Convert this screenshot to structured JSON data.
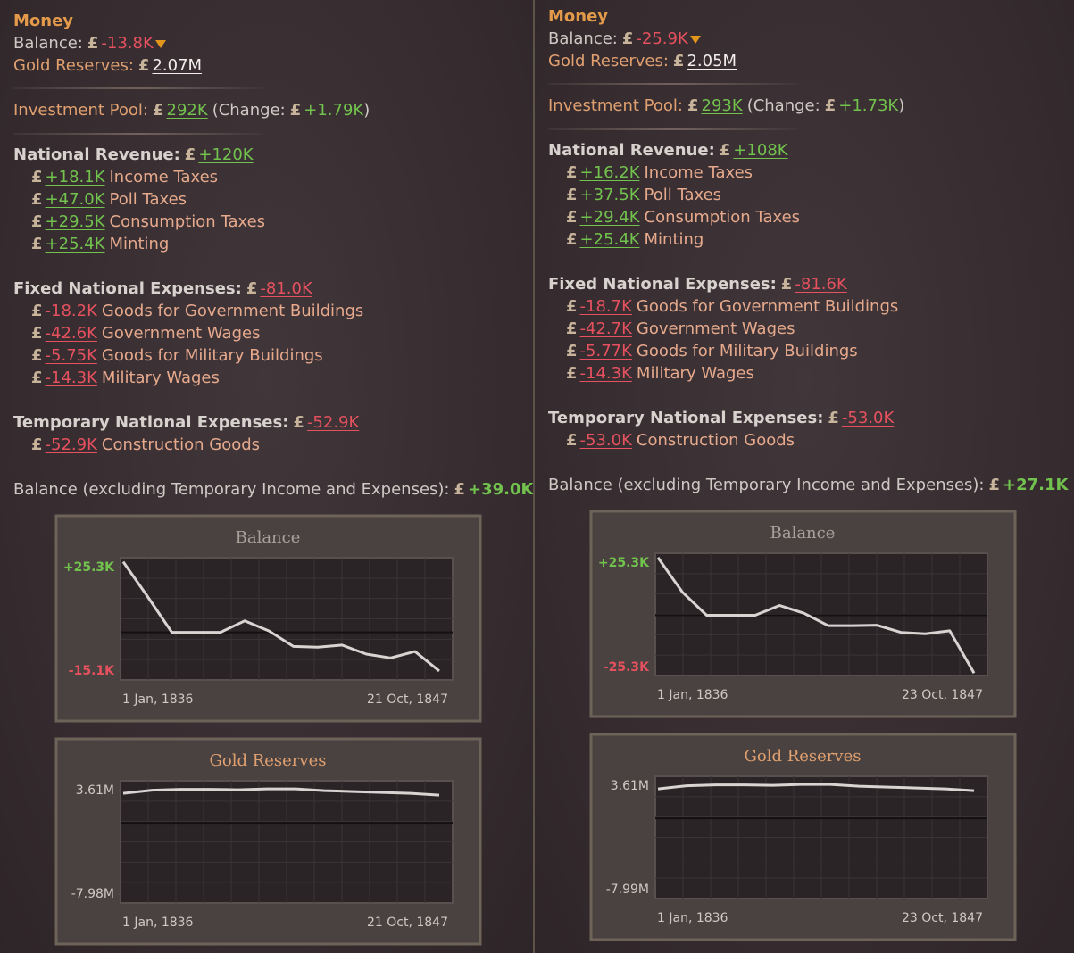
{
  "currency": "£",
  "panels": [
    {
      "title": "Money",
      "balance": {
        "label": "Balance:",
        "value": "-13.8K",
        "color": "#e5515e"
      },
      "gold_reserves": {
        "label": "Gold Reserves:",
        "value": "2.07M"
      },
      "investment_pool": {
        "label": "Investment Pool:",
        "value": "292K",
        "change_label": "(Change:",
        "change": "+1.79K",
        "close": ")"
      },
      "sections": [
        {
          "heading": "National Revenue:",
          "total": "+120K",
          "color": "#72c24e",
          "items": [
            {
              "value": "+18.1K",
              "label": "Income Taxes"
            },
            {
              "value": "+47.0K",
              "label": "Poll Taxes"
            },
            {
              "value": "+29.5K",
              "label": "Consumption Taxes"
            },
            {
              "value": "+25.4K",
              "label": "Minting"
            }
          ]
        },
        {
          "heading": "Fixed National Expenses:",
          "total": "-81.0K",
          "color": "#e5515e",
          "items": [
            {
              "value": "-18.2K",
              "label": "Goods for Government Buildings"
            },
            {
              "value": "-42.6K",
              "label": "Government Wages"
            },
            {
              "value": "-5.75K",
              "label": "Goods for Military Buildings"
            },
            {
              "value": "-14.3K",
              "label": "Military Wages"
            }
          ]
        },
        {
          "heading": "Temporary National Expenses:",
          "total": "-52.9K",
          "color": "#e5515e",
          "items": [
            {
              "value": "-52.9K",
              "label": "Construction Goods"
            }
          ]
        }
      ],
      "balance_excluding": {
        "label": "Balance (excluding Temporary Income and Expenses):",
        "value": "+39.0K",
        "color": "#72c24e"
      },
      "charts": [
        {
          "type": "line",
          "title": "Balance",
          "title_color": "#a9a19c",
          "color": "#d8d4d2",
          "ylim": [
            -18600,
            29100
          ],
          "yticks": [
            {
              "value": 25300,
              "label": "+25.3K"
            },
            {
              "value": -15100,
              "label": "-15.1K"
            }
          ],
          "tick_colors": [
            "#72c24e",
            "#e5515e"
          ],
          "x_labels": [
            "1 Jan, 1836",
            "21 Oct, 1847"
          ],
          "values": [
            27500,
            14000,
            0,
            0,
            0,
            4500,
            500,
            -5500,
            -5800,
            -5000,
            -8500,
            -10000,
            -7500,
            -15100
          ]
        },
        {
          "type": "line",
          "title": "Gold Reserves",
          "title_color": "#e0a070",
          "color": "#d8d4d2",
          "ylim": [
            -8980000,
            4710000
          ],
          "yticks": [
            {
              "value": 3610000,
              "label": "3.61M"
            },
            {
              "value": -7980000,
              "label": "-7.98M"
            }
          ],
          "tick_colors": [
            "#cfc8c4",
            "#cfc8c4"
          ],
          "x_labels": [
            "1 Jan, 1836",
            "21 Oct, 1847"
          ],
          "values": [
            3300000,
            3650000,
            3750000,
            3750000,
            3700000,
            3800000,
            3800000,
            3600000,
            3500000,
            3400000,
            3300000,
            3100000
          ]
        }
      ]
    },
    {
      "title": "Money",
      "balance": {
        "label": "Balance:",
        "value": "-25.9K",
        "color": "#e5515e"
      },
      "gold_reserves": {
        "label": "Gold Reserves:",
        "value": "2.05M"
      },
      "investment_pool": {
        "label": "Investment Pool:",
        "value": "293K",
        "change_label": "(Change:",
        "change": "+1.73K",
        "close": ")"
      },
      "sections": [
        {
          "heading": "National Revenue:",
          "total": "+108K",
          "color": "#72c24e",
          "items": [
            {
              "value": "+16.2K",
              "label": "Income Taxes"
            },
            {
              "value": "+37.5K",
              "label": "Poll Taxes"
            },
            {
              "value": "+29.4K",
              "label": "Consumption Taxes"
            },
            {
              "value": "+25.4K",
              "label": "Minting"
            }
          ]
        },
        {
          "heading": "Fixed National Expenses:",
          "total": "-81.6K",
          "color": "#e5515e",
          "items": [
            {
              "value": "-18.7K",
              "label": "Goods for Government Buildings"
            },
            {
              "value": "-42.7K",
              "label": "Government Wages"
            },
            {
              "value": "-5.77K",
              "label": "Goods for Military Buildings"
            },
            {
              "value": "-14.3K",
              "label": "Military Wages"
            }
          ]
        },
        {
          "heading": "Temporary National Expenses:",
          "total": "-53.0K",
          "color": "#e5515e",
          "items": [
            {
              "value": "-53.0K",
              "label": "Construction Goods"
            }
          ]
        }
      ],
      "balance_excluding": {
        "label": "Balance (excluding Temporary Income and Expenses):",
        "value": "+27.1K",
        "color": "#72c24e"
      },
      "charts": [
        {
          "type": "line",
          "title": "Balance",
          "title_color": "#a9a19c",
          "color": "#d8d4d2",
          "ylim": [
            -29200,
            30100
          ],
          "yticks": [
            {
              "value": 25300,
              "label": "+25.3K"
            },
            {
              "value": -25300,
              "label": "-25.3K"
            }
          ],
          "tick_colors": [
            "#72c24e",
            "#e5515e"
          ],
          "x_labels": [
            "1 Jan, 1836",
            "23 Oct, 1847"
          ],
          "values": [
            28000,
            11300,
            0,
            0,
            0,
            4800,
            1000,
            -5000,
            -5000,
            -4800,
            -8300,
            -9000,
            -7500,
            -28000
          ]
        },
        {
          "type": "line",
          "title": "Gold Reserves",
          "title_color": "#e0a070",
          "color": "#d8d4d2",
          "ylim": [
            -8990000,
            4710000
          ],
          "yticks": [
            {
              "value": 3610000,
              "label": "3.61M"
            },
            {
              "value": -7990000,
              "label": "-7.99M"
            }
          ],
          "tick_colors": [
            "#cfc8c4",
            "#cfc8c4"
          ],
          "x_labels": [
            "1 Jan, 1836",
            "23 Oct, 1847"
          ],
          "values": [
            3300000,
            3650000,
            3750000,
            3750000,
            3700000,
            3800000,
            3800000,
            3600000,
            3500000,
            3400000,
            3300000,
            3100000
          ]
        }
      ]
    }
  ]
}
